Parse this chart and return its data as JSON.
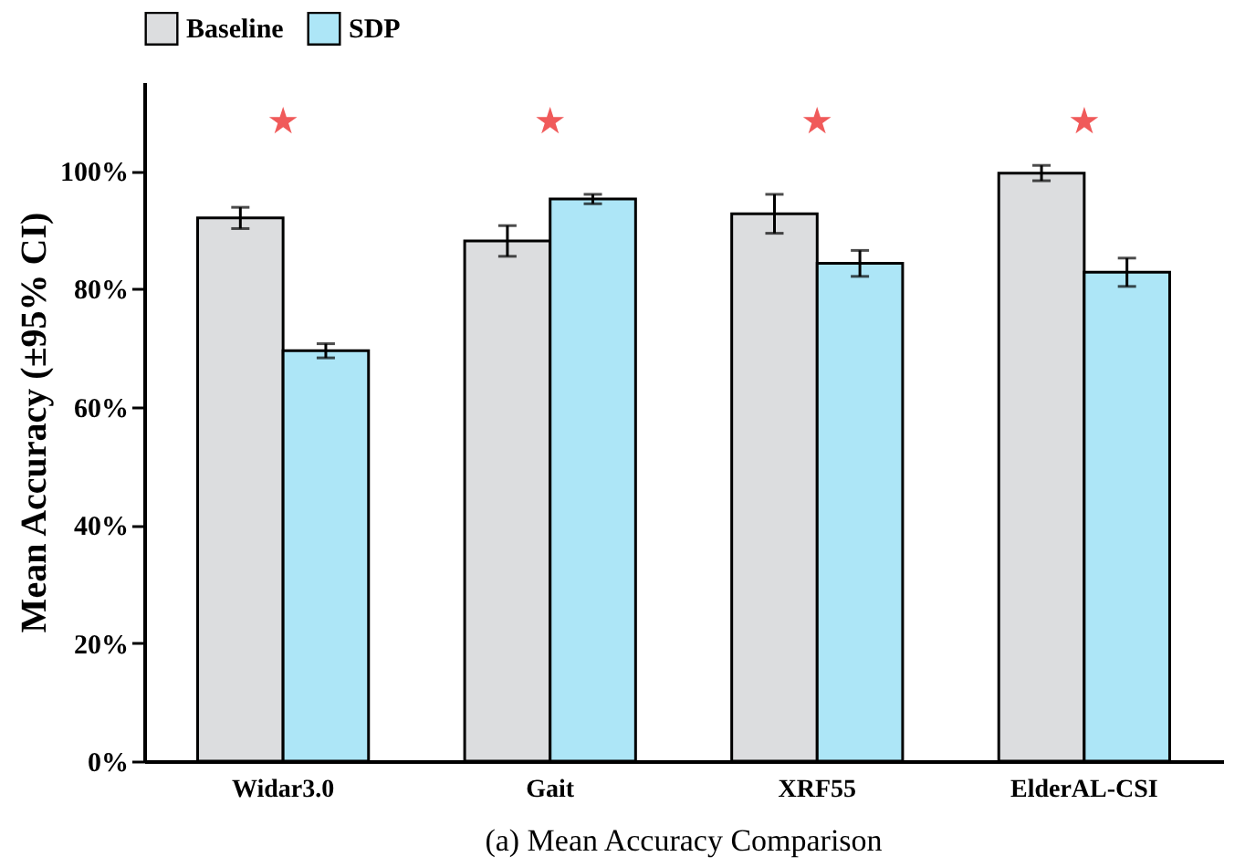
{
  "chart_data": {
    "type": "bar",
    "title": "(a) Mean Accuracy Comparison",
    "ylabel": "Mean Accuracy (±95% CI)",
    "categories": [
      "Widar3.0",
      "Gait",
      "XRF55",
      "ElderAL-CSI"
    ],
    "series": [
      {
        "name": "Baseline",
        "color": "#dcdddf",
        "values": [
          92.0,
          88.1,
          92.7,
          99.6
        ],
        "errors": [
          1.8,
          2.6,
          3.3,
          1.3
        ]
      },
      {
        "name": "SDP",
        "color": "#ade6f7",
        "values": [
          69.5,
          95.2,
          84.3,
          82.8
        ],
        "errors": [
          1.2,
          0.8,
          2.2,
          2.4
        ]
      }
    ],
    "ylim": [
      0,
      115
    ],
    "yticks": [
      {
        "value": 0,
        "label": "0%"
      },
      {
        "value": 20,
        "label": "20%"
      },
      {
        "value": 40,
        "label": "40%"
      },
      {
        "value": 60,
        "label": "60%"
      },
      {
        "value": 80,
        "label": "80%"
      },
      {
        "value": 100,
        "label": "100%"
      }
    ],
    "annotations": [
      "★",
      "★",
      "★",
      "★"
    ],
    "grid": false,
    "legend": "top"
  }
}
